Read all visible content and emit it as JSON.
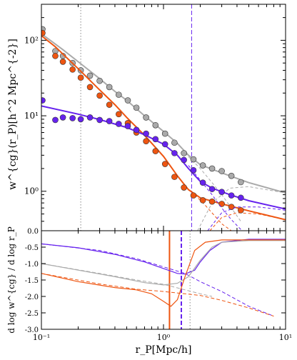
{
  "chart_data": [
    {
      "type": "scatter",
      "panel": "top",
      "xlabel": "",
      "ylabel": "w^{cg}(r_P)[h^2 Mpc^{-2}]",
      "xlim": [
        0.1,
        10
      ],
      "ylim": [
        0.3,
        300
      ],
      "xscale": "log",
      "yscale": "log",
      "xticks": [
        {
          "v": 0.1,
          "label": ""
        },
        {
          "v": 1,
          "label": ""
        },
        {
          "v": 10,
          "label": ""
        }
      ],
      "yticks": [
        {
          "v": 1,
          "label": "10⁰"
        },
        {
          "v": 10,
          "label": "10¹"
        },
        {
          "v": 100,
          "label": "10²"
        }
      ],
      "series": [
        {
          "color": "#aaaaaa",
          "points": [
            [
              0.102,
              140
            ],
            [
              0.13,
              72
            ],
            [
              0.15,
              62
            ],
            [
              0.18,
              50
            ],
            [
              0.21,
              40
            ],
            [
              0.25,
              34
            ],
            [
              0.3,
              29
            ],
            [
              0.36,
              24
            ],
            [
              0.43,
              19
            ],
            [
              0.51,
              16
            ],
            [
              0.6,
              12.8
            ],
            [
              0.72,
              9.5
            ],
            [
              0.86,
              7.5
            ],
            [
              1.03,
              5.8
            ],
            [
              1.23,
              4.4
            ],
            [
              1.47,
              3.2
            ],
            [
              1.76,
              2.65
            ],
            [
              2.1,
              2.2
            ],
            [
              2.5,
              2.0
            ],
            [
              3.0,
              1.85
            ],
            [
              3.6,
              1.6
            ],
            [
              4.3,
              1.32
            ]
          ],
          "fit": [
            [
              0.1,
              122
            ],
            [
              0.15,
              75
            ],
            [
              0.2,
              52
            ],
            [
              0.3,
              31
            ],
            [
              0.4,
              21
            ],
            [
              0.5,
              16
            ],
            [
              0.7,
              10
            ],
            [
              1.0,
              6.2
            ],
            [
              1.3,
              4.3
            ],
            [
              1.6,
              3.0
            ],
            [
              2.0,
              2.25
            ],
            [
              3.0,
              1.75
            ],
            [
              5.0,
              1.3
            ],
            [
              10,
              0.95
            ]
          ],
          "components": [
            [
              [
                1.5,
                3.2
              ],
              [
                2.0,
                2.0
              ],
              [
                2.5,
                1.3
              ],
              [
                3.0,
                0.9
              ],
              [
                3.6,
                0.6
              ],
              [
                4.3,
                0.4
              ]
            ],
            [
              [
                1.9,
                0.3
              ],
              [
                2.5,
                0.7
              ],
              [
                3.5,
                1.1
              ],
              [
                5.0,
                1.15
              ],
              [
                10,
                0.95
              ]
            ]
          ]
        },
        {
          "color": "#ee5511",
          "points": [
            [
              0.102,
              125
            ],
            [
              0.13,
              62
            ],
            [
              0.15,
              52
            ],
            [
              0.18,
              41
            ],
            [
              0.21,
              32
            ],
            [
              0.25,
              24
            ],
            [
              0.3,
              18.5
            ],
            [
              0.36,
              14
            ],
            [
              0.43,
              10.5
            ],
            [
              0.51,
              8
            ],
            [
              0.6,
              6
            ],
            [
              0.72,
              4.6
            ],
            [
              0.86,
              3.4
            ],
            [
              1.03,
              2.3
            ],
            [
              1.23,
              1.55
            ],
            [
              1.47,
              1.12
            ],
            [
              1.76,
              0.88
            ],
            [
              2.1,
              0.76
            ],
            [
              2.5,
              0.73
            ],
            [
              3.0,
              0.68
            ],
            [
              3.6,
              0.62
            ],
            [
              4.3,
              0.56
            ]
          ],
          "fit": [
            [
              0.1,
              115
            ],
            [
              0.13,
              82
            ],
            [
              0.2,
              42
            ],
            [
              0.3,
              22
            ],
            [
              0.4,
              14
            ],
            [
              0.5,
              9.5
            ],
            [
              0.7,
              5.5
            ],
            [
              1.0,
              2.9
            ],
            [
              1.3,
              1.6
            ],
            [
              1.6,
              1.05
            ],
            [
              2.0,
              0.82
            ],
            [
              3.0,
              0.68
            ],
            [
              5.0,
              0.55
            ],
            [
              10,
              0.42
            ]
          ],
          "components": [
            [
              [
                1.8,
                0.9
              ],
              [
                2.2,
                0.65
              ],
              [
                2.6,
                0.48
              ],
              [
                3.0,
                0.37
              ],
              [
                3.6,
                0.3
              ]
            ],
            [
              [
                2.4,
                0.3
              ],
              [
                3.0,
                0.45
              ],
              [
                4.0,
                0.52
              ],
              [
                6.0,
                0.5
              ],
              [
                10,
                0.42
              ]
            ]
          ]
        },
        {
          "color": "#6622ee",
          "points": [
            [
              0.102,
              16
            ],
            [
              0.13,
              8.8
            ],
            [
              0.15,
              9.5
            ],
            [
              0.18,
              9.3
            ],
            [
              0.21,
              9.0
            ],
            [
              0.25,
              9.5
            ],
            [
              0.3,
              8.8
            ],
            [
              0.36,
              8.5
            ],
            [
              0.43,
              7.8
            ],
            [
              0.51,
              7.3
            ],
            [
              0.6,
              6.5
            ],
            [
              0.72,
              5.8
            ],
            [
              0.86,
              4.9
            ],
            [
              1.03,
              4.2
            ],
            [
              1.23,
              3.2
            ],
            [
              1.47,
              2.6
            ],
            [
              1.76,
              1.9
            ],
            [
              2.1,
              1.3
            ],
            [
              2.5,
              1.07
            ],
            [
              3.0,
              0.98
            ],
            [
              3.6,
              0.88
            ],
            [
              4.3,
              0.82
            ]
          ],
          "fit": [
            [
              0.1,
              13.5
            ],
            [
              0.2,
              10.5
            ],
            [
              0.3,
              8.9
            ],
            [
              0.5,
              7.0
            ],
            [
              0.7,
              5.6
            ],
            [
              1.0,
              4.2
            ],
            [
              1.3,
              3.0
            ],
            [
              1.6,
              2.0
            ],
            [
              2.0,
              1.35
            ],
            [
              2.5,
              1.1
            ],
            [
              3.5,
              0.9
            ],
            [
              5.0,
              0.75
            ],
            [
              10,
              0.58
            ]
          ],
          "components": [
            [
              [
                1.6,
                2.2
              ],
              [
                2.0,
                1.4
              ],
              [
                2.5,
                0.9
              ],
              [
                3.0,
                0.6
              ],
              [
                3.6,
                0.42
              ],
              [
                4.4,
                0.3
              ]
            ],
            [
              [
                2.3,
                0.3
              ],
              [
                3.0,
                0.52
              ],
              [
                4.0,
                0.62
              ],
              [
                6.0,
                0.62
              ],
              [
                10,
                0.56
              ]
            ]
          ]
        }
      ],
      "vlines": [
        {
          "x": 0.21,
          "color": "#888888",
          "style": "dotted"
        },
        {
          "x": 1.7,
          "color": "#6622ee",
          "style": "dashed"
        }
      ]
    },
    {
      "type": "line",
      "panel": "bottom",
      "xlabel": "r_P[Mpc/h]",
      "ylabel": "d log w^{cg} / d log r_P",
      "xlim": [
        0.1,
        10
      ],
      "ylim": [
        -3.0,
        0.0
      ],
      "xscale": "log",
      "xticks": [
        {
          "v": 0.1,
          "label": "10⁻¹"
        },
        {
          "v": 1,
          "label": "10⁰"
        },
        {
          "v": 10,
          "label": "10¹"
        }
      ],
      "yticks": [
        {
          "v": 0.0,
          "label": "0.0"
        },
        {
          "v": -0.5,
          "label": "-0.5"
        },
        {
          "v": -1.0,
          "label": "-1.0"
        },
        {
          "v": -1.5,
          "label": "-1.5"
        },
        {
          "v": -2.0,
          "label": "-2.0"
        },
        {
          "v": -2.5,
          "label": "-2.5"
        },
        {
          "v": -3.0,
          "label": "-3.0"
        }
      ],
      "series": [
        {
          "color": "#6622ee",
          "solid": [
            [
              0.1,
              -0.4
            ],
            [
              0.2,
              -0.52
            ],
            [
              0.4,
              -0.72
            ],
            [
              0.7,
              -0.95
            ],
            [
              1.0,
              -1.15
            ],
            [
              1.3,
              -1.3
            ],
            [
              1.5,
              -1.32
            ],
            [
              1.8,
              -1.2
            ],
            [
              2.0,
              -0.95
            ],
            [
              2.4,
              -0.6
            ],
            [
              3.0,
              -0.35
            ],
            [
              5.0,
              -0.26
            ],
            [
              10,
              -0.26
            ]
          ],
          "dashed": [
            [
              0.1,
              -0.4
            ],
            [
              0.3,
              -0.6
            ],
            [
              0.6,
              -0.85
            ],
            [
              1.0,
              -1.1
            ],
            [
              1.5,
              -1.3
            ],
            [
              2.0,
              -1.55
            ],
            [
              3.0,
              -1.85
            ],
            [
              5.0,
              -2.3
            ],
            [
              8.0,
              -2.6
            ]
          ]
        },
        {
          "color": "#aaaaaa",
          "solid": [
            [
              0.1,
              -1.0
            ],
            [
              0.2,
              -1.2
            ],
            [
              0.4,
              -1.4
            ],
            [
              0.7,
              -1.58
            ],
            [
              1.0,
              -1.65
            ],
            [
              1.3,
              -1.6
            ],
            [
              1.6,
              -1.4
            ],
            [
              2.0,
              -0.9
            ],
            [
              2.5,
              -0.5
            ],
            [
              3.0,
              -0.35
            ],
            [
              5.0,
              -0.3
            ],
            [
              10,
              -0.3
            ]
          ],
          "dashed": [
            [
              0.1,
              -1.0
            ],
            [
              0.3,
              -1.3
            ],
            [
              0.6,
              -1.5
            ],
            [
              1.0,
              -1.63
            ],
            [
              1.5,
              -1.8
            ],
            [
              2.0,
              -1.92
            ],
            [
              2.5,
              -2.0
            ]
          ]
        },
        {
          "color": "#ee5511",
          "solid": [
            [
              0.1,
              -1.3
            ],
            [
              0.2,
              -1.55
            ],
            [
              0.4,
              -1.73
            ],
            [
              0.6,
              -1.8
            ],
            [
              0.8,
              -1.92
            ],
            [
              1.0,
              -2.15
            ],
            [
              1.15,
              -2.3
            ],
            [
              1.3,
              -2.1
            ],
            [
              1.5,
              -1.4
            ],
            [
              1.8,
              -0.6
            ],
            [
              2.2,
              -0.35
            ],
            [
              3.0,
              -0.28
            ],
            [
              10,
              -0.28
            ]
          ],
          "dashed": [
            [
              0.1,
              -1.3
            ],
            [
              0.3,
              -1.62
            ],
            [
              0.6,
              -1.78
            ],
            [
              1.0,
              -1.85
            ],
            [
              1.5,
              -1.92
            ],
            [
              2.0,
              -1.97
            ],
            [
              3.0,
              -2.12
            ],
            [
              5.0,
              -2.35
            ],
            [
              8.0,
              -2.6
            ]
          ]
        }
      ],
      "vlines": [
        {
          "x": 1.12,
          "color": "#ee5511",
          "style": "solid"
        },
        {
          "x": 1.4,
          "color": "#6622ee",
          "style": "dashed"
        },
        {
          "x": 1.65,
          "color": "#888888",
          "style": "dotted"
        }
      ]
    }
  ]
}
